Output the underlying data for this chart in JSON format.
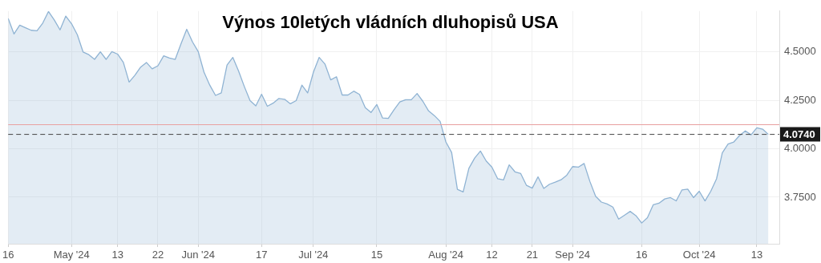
{
  "chart_data": {
    "type": "area",
    "title": "Výnos 10letých vládních dluhopisů USA",
    "categories": [
      "16",
      null,
      null,
      null,
      null,
      null,
      null,
      null,
      null,
      null,
      null,
      "May '24",
      null,
      null,
      null,
      null,
      null,
      null,
      null,
      "13",
      null,
      null,
      null,
      null,
      null,
      null,
      "22",
      null,
      null,
      null,
      null,
      null,
      null,
      "Jun '24",
      null,
      null,
      null,
      null,
      null,
      null,
      null,
      null,
      null,
      null,
      "17",
      null,
      null,
      null,
      null,
      null,
      null,
      null,
      null,
      "Jul '24",
      null,
      null,
      null,
      null,
      null,
      null,
      null,
      null,
      null,
      null,
      "15",
      null,
      null,
      null,
      null,
      null,
      null,
      null,
      null,
      null,
      null,
      null,
      "Aug '24",
      null,
      null,
      null,
      null,
      null,
      null,
      null,
      "12",
      null,
      null,
      null,
      null,
      null,
      null,
      "21",
      null,
      null,
      null,
      null,
      null,
      null,
      "Sep '24",
      null,
      null,
      null,
      null,
      null,
      null,
      null,
      null,
      null,
      null,
      null,
      "16",
      null,
      null,
      null,
      null,
      null,
      null,
      null,
      null,
      null,
      "Oct '24",
      null,
      null,
      null,
      null,
      null,
      null,
      null,
      null,
      null,
      "13",
      null,
      null
    ],
    "series": [
      {
        "color": "#8fb3d3",
        "values": [
          4.672,
          4.592,
          4.637,
          4.624,
          4.611,
          4.608,
          4.648,
          4.708,
          4.664,
          4.613,
          4.684,
          4.645,
          4.588,
          4.499,
          4.485,
          4.461,
          4.5,
          4.461,
          4.501,
          4.488,
          4.445,
          4.344,
          4.379,
          4.421,
          4.445,
          4.412,
          4.428,
          4.479,
          4.468,
          4.461,
          4.541,
          4.616,
          4.551,
          4.501,
          4.395,
          4.328,
          4.275,
          4.288,
          4.432,
          4.471,
          4.401,
          4.321,
          4.248,
          4.221,
          4.281,
          4.219,
          4.235,
          4.259,
          4.255,
          4.232,
          4.248,
          4.328,
          4.288,
          4.395,
          4.471,
          4.437,
          4.355,
          4.371,
          4.277,
          4.277,
          4.297,
          4.28,
          4.212,
          4.187,
          4.228,
          4.159,
          4.157,
          4.201,
          4.241,
          4.253,
          4.253,
          4.285,
          4.245,
          4.195,
          4.171,
          4.141,
          4.035,
          3.981,
          3.791,
          3.777,
          3.899,
          3.952,
          3.988,
          3.937,
          3.905,
          3.845,
          3.839,
          3.917,
          3.881,
          3.872,
          3.811,
          3.797,
          3.855,
          3.795,
          3.817,
          3.828,
          3.84,
          3.864,
          3.908,
          3.905,
          3.924,
          3.832,
          3.755,
          3.725,
          3.715,
          3.699,
          3.637,
          3.657,
          3.677,
          3.655,
          3.617,
          3.644,
          3.711,
          3.719,
          3.741,
          3.748,
          3.731,
          3.788,
          3.792,
          3.748,
          3.781,
          3.731,
          3.781,
          3.845,
          3.979,
          4.024,
          4.035,
          4.068,
          4.092,
          4.072,
          4.108,
          4.101,
          4.074
        ]
      }
    ],
    "ylim": [
      3.51,
      4.71
    ],
    "yticks": [
      {
        "value": 3.75,
        "label": "3.7500"
      },
      {
        "value": 4,
        "label": "4.0000"
      },
      {
        "value": 4.25,
        "label": "4.2500"
      },
      {
        "value": 4.5,
        "label": "4.5000"
      }
    ],
    "ref_lines": [
      {
        "axis": "y",
        "value": 4.124,
        "label": null,
        "color": "#e8a0a0",
        "line_style": "solid"
      },
      {
        "axis": "y",
        "value": 4.074,
        "label": "4.0740",
        "color": "#444444",
        "line_style": "dashed"
      }
    ],
    "grid": true
  }
}
